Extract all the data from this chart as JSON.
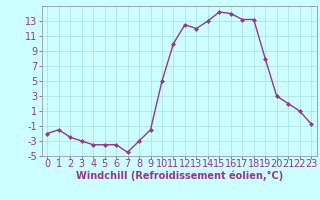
{
  "x": [
    0,
    1,
    2,
    3,
    4,
    5,
    6,
    7,
    8,
    9,
    10,
    11,
    12,
    13,
    14,
    15,
    16,
    17,
    18,
    19,
    20,
    21,
    22,
    23
  ],
  "y": [
    -2.0,
    -1.5,
    -2.5,
    -3.0,
    -3.5,
    -3.5,
    -3.5,
    -4.5,
    -3.0,
    -1.5,
    5.0,
    10.0,
    12.5,
    12.0,
    13.0,
    14.2,
    14.0,
    13.2,
    13.2,
    8.0,
    3.0,
    2.0,
    1.0,
    -0.7
  ],
  "line_color": "#993399",
  "marker": "D",
  "marker_size": 2,
  "bg_color": "#ccffff",
  "grid_color": "#aadddd",
  "xlabel": "Windchill (Refroidissement éolien,°C)",
  "xlabel_color": "#993399",
  "tick_color": "#993399",
  "ylim": [
    -5,
    15
  ],
  "yticks": [
    -5,
    -3,
    -1,
    1,
    3,
    5,
    7,
    9,
    11,
    13
  ],
  "xticks": [
    0,
    1,
    2,
    3,
    4,
    5,
    6,
    7,
    8,
    9,
    10,
    11,
    12,
    13,
    14,
    15,
    16,
    17,
    18,
    19,
    20,
    21,
    22,
    23
  ],
  "xlim": [
    -0.5,
    23.5
  ],
  "tick_fontsize": 7,
  "xlabel_fontsize": 7
}
